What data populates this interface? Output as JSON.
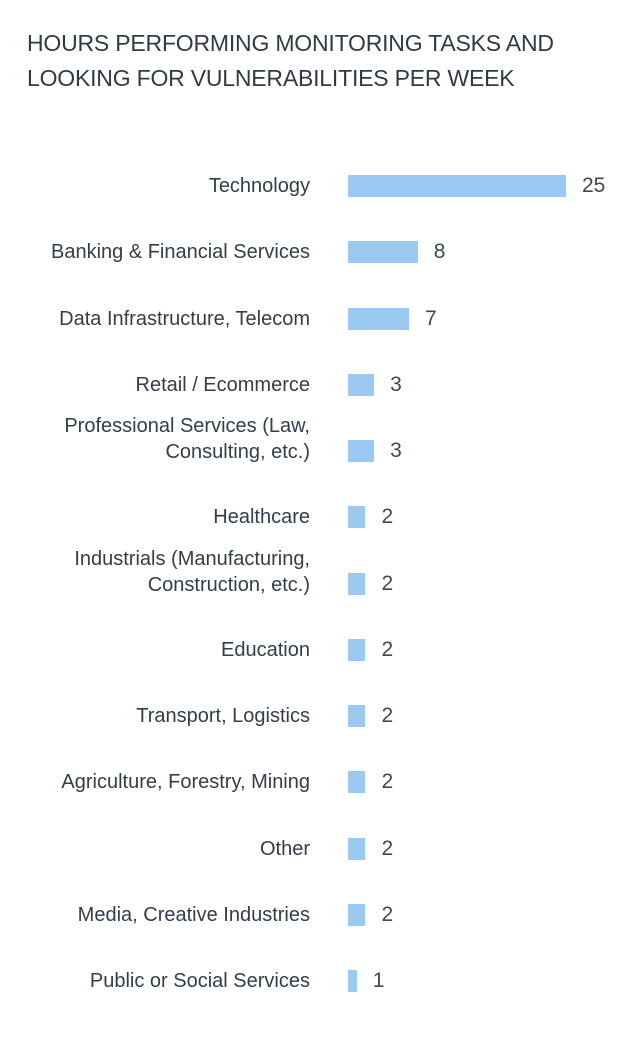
{
  "title": "HOURS PERFORMING MONITORING TASKS AND LOOKING FOR VULNERABILITIES PER WEEK",
  "title_lines": [
    "HOURS PERFORMING MONITORING TASKS AND",
    "LOOKING FOR VULNERABILITIES PER WEEK"
  ],
  "chart_data": {
    "type": "bar",
    "orientation": "horizontal",
    "title": "HOURS PERFORMING MONITORING TASKS AND LOOKING FOR VULNERABILITIES PER WEEK",
    "xlabel": "",
    "ylabel": "",
    "xlim": [
      0,
      25
    ],
    "grid": false,
    "legend": null,
    "value_labels_shown": true,
    "bar_color": "#9bc9f1",
    "label_color": "#323e4a",
    "value_color": "#3e4954",
    "title_color": "#2f3b47",
    "categories": [
      "Technology",
      "Banking & Financial Services",
      "Data Infrastructure, Telecom",
      "Retail / Ecommerce",
      "Professional Services (Law, Consulting, etc.)",
      "Healthcare",
      "Industrials (Manufacturing, Construction, etc.)",
      "Education",
      "Transport, Logistics",
      "Agriculture, Forestry, Mining",
      "Other",
      "Media, Creative Industries",
      "Public or Social Services"
    ],
    "label_lines": [
      [
        "Technology"
      ],
      [
        "Banking & Financial Services"
      ],
      [
        "Data Infrastructure, Telecom"
      ],
      [
        "Retail / Ecommerce"
      ],
      [
        "Professional Services (Law,",
        "Consulting, etc.)"
      ],
      [
        "Healthcare"
      ],
      [
        "Industrials (Manufacturing,",
        "Construction, etc.)"
      ],
      [
        "Education"
      ],
      [
        "Transport, Logistics"
      ],
      [
        "Agriculture, Forestry, Mining"
      ],
      [
        "Other"
      ],
      [
        "Media, Creative Industries"
      ],
      [
        "Public or Social Services"
      ]
    ],
    "values": [
      25,
      8,
      7,
      3,
      3,
      2,
      2,
      2,
      2,
      2,
      2,
      2,
      1
    ]
  }
}
